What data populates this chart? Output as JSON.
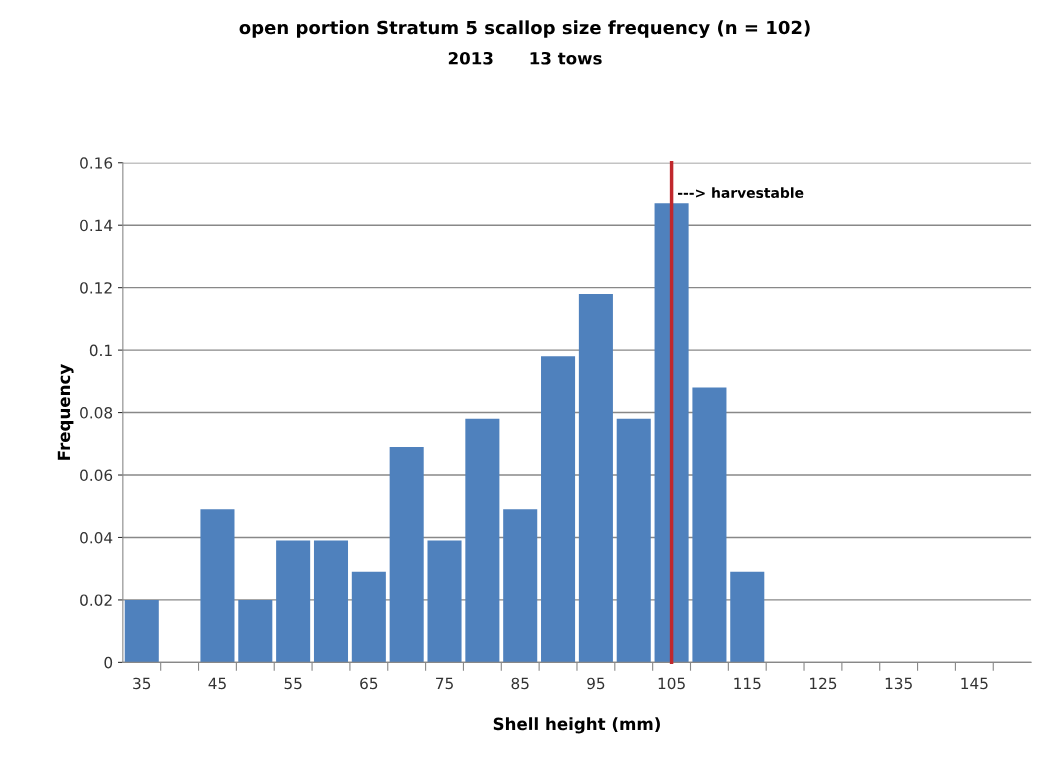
{
  "chart_data": {
    "type": "bar",
    "title": "open portion Stratum 5 scallop size frequency (n = 102)",
    "subtitle": "2013      13 tows",
    "xlabel": "Shell height (mm)",
    "ylabel": "Frequency",
    "categories": [
      "35",
      null,
      "45",
      null,
      "55",
      null,
      "65",
      null,
      "75",
      null,
      "85",
      null,
      "95",
      null,
      "105",
      null,
      "115",
      null,
      "125",
      null,
      "135",
      null,
      "145",
      null
    ],
    "values": [
      0.02,
      0,
      0.049,
      0.02,
      0.039,
      0.039,
      0.029,
      0.069,
      0.039,
      0.078,
      0.049,
      0.098,
      0.118,
      0.078,
      0.147,
      0.088,
      0.029,
      0,
      0,
      0,
      0,
      0,
      0,
      0
    ],
    "color": "#4f81bd",
    "ylim": [
      0,
      0.16
    ],
    "yticks": [
      0,
      0.02,
      0.04,
      0.06,
      0.08,
      {
        "value": 0.1,
        "label": "0.1"
      },
      0.12,
      0.14,
      0.16
    ],
    "grid": "y",
    "ref_lines": [
      {
        "axis": "x",
        "value": "105",
        "label": "---> harvestable",
        "color": "#c0282d"
      }
    ]
  }
}
